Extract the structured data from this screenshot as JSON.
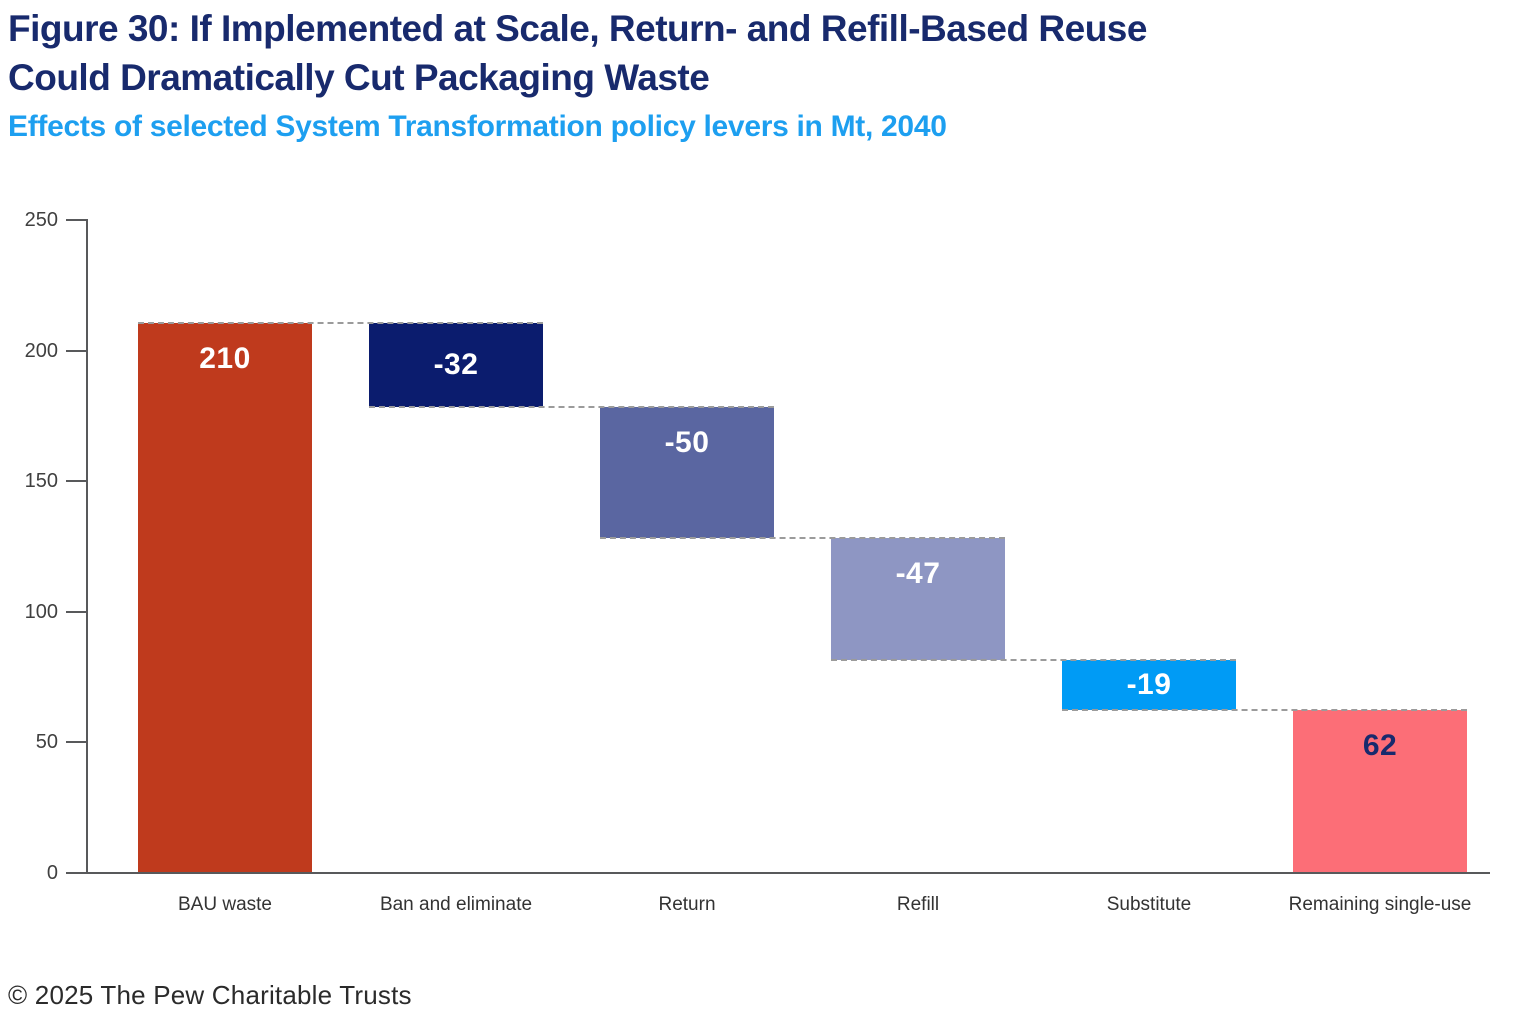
{
  "header": {
    "title": "Figure 30: If Implemented at Scale, Return- and Refill-Based Reuse\nCould Dramatically Cut Packaging Waste",
    "subtitle": "Effects of selected System Transformation policy levers in Mt, 2040",
    "title_color": "#182a6d",
    "subtitle_color": "#1d9ff0"
  },
  "chart_data": {
    "type": "bar",
    "subtype": "waterfall",
    "title": "Figure 30: If Implemented at Scale, Return- and Refill-Based Reuse Could Dramatically Cut Packaging Waste",
    "subtitle": "Effects of selected System Transformation policy levers in Mt, 2040",
    "categories": [
      "BAU waste",
      "Ban and eliminate",
      "Return",
      "Refill",
      "Substitute",
      "Remaining single-use"
    ],
    "values": [
      210,
      -32,
      -50,
      -47,
      -19,
      62
    ],
    "bar_labels": [
      "210",
      "-32",
      "-50",
      "-47",
      "-19",
      "62"
    ],
    "cumulative_segments": [
      {
        "base": 0,
        "top": 210
      },
      {
        "base": 178,
        "top": 210
      },
      {
        "base": 128,
        "top": 178
      },
      {
        "base": 81,
        "top": 128
      },
      {
        "base": 62,
        "top": 81
      },
      {
        "base": 0,
        "top": 62
      }
    ],
    "bar_colors": [
      "#bf3a1d",
      "#0b1c6e",
      "#5a66a1",
      "#8e96c3",
      "#009bf5",
      "#fc6e77"
    ],
    "value_label_colors": [
      "#ffffff",
      "#ffffff",
      "#ffffff",
      "#ffffff",
      "#ffffff",
      "#182a6d"
    ],
    "xlabel": "",
    "ylabel": "",
    "ylim": [
      0,
      250
    ],
    "y_ticks": [
      0,
      50,
      100,
      150,
      200,
      250
    ],
    "grid": false,
    "legend": "none",
    "connector_color": "#9b9b9b",
    "axis_color": "#58595b",
    "tick_label_color": "#404040",
    "category_label_color": "#333333"
  },
  "footer": {
    "copyright": "© 2025 The Pew Charitable Trusts"
  }
}
